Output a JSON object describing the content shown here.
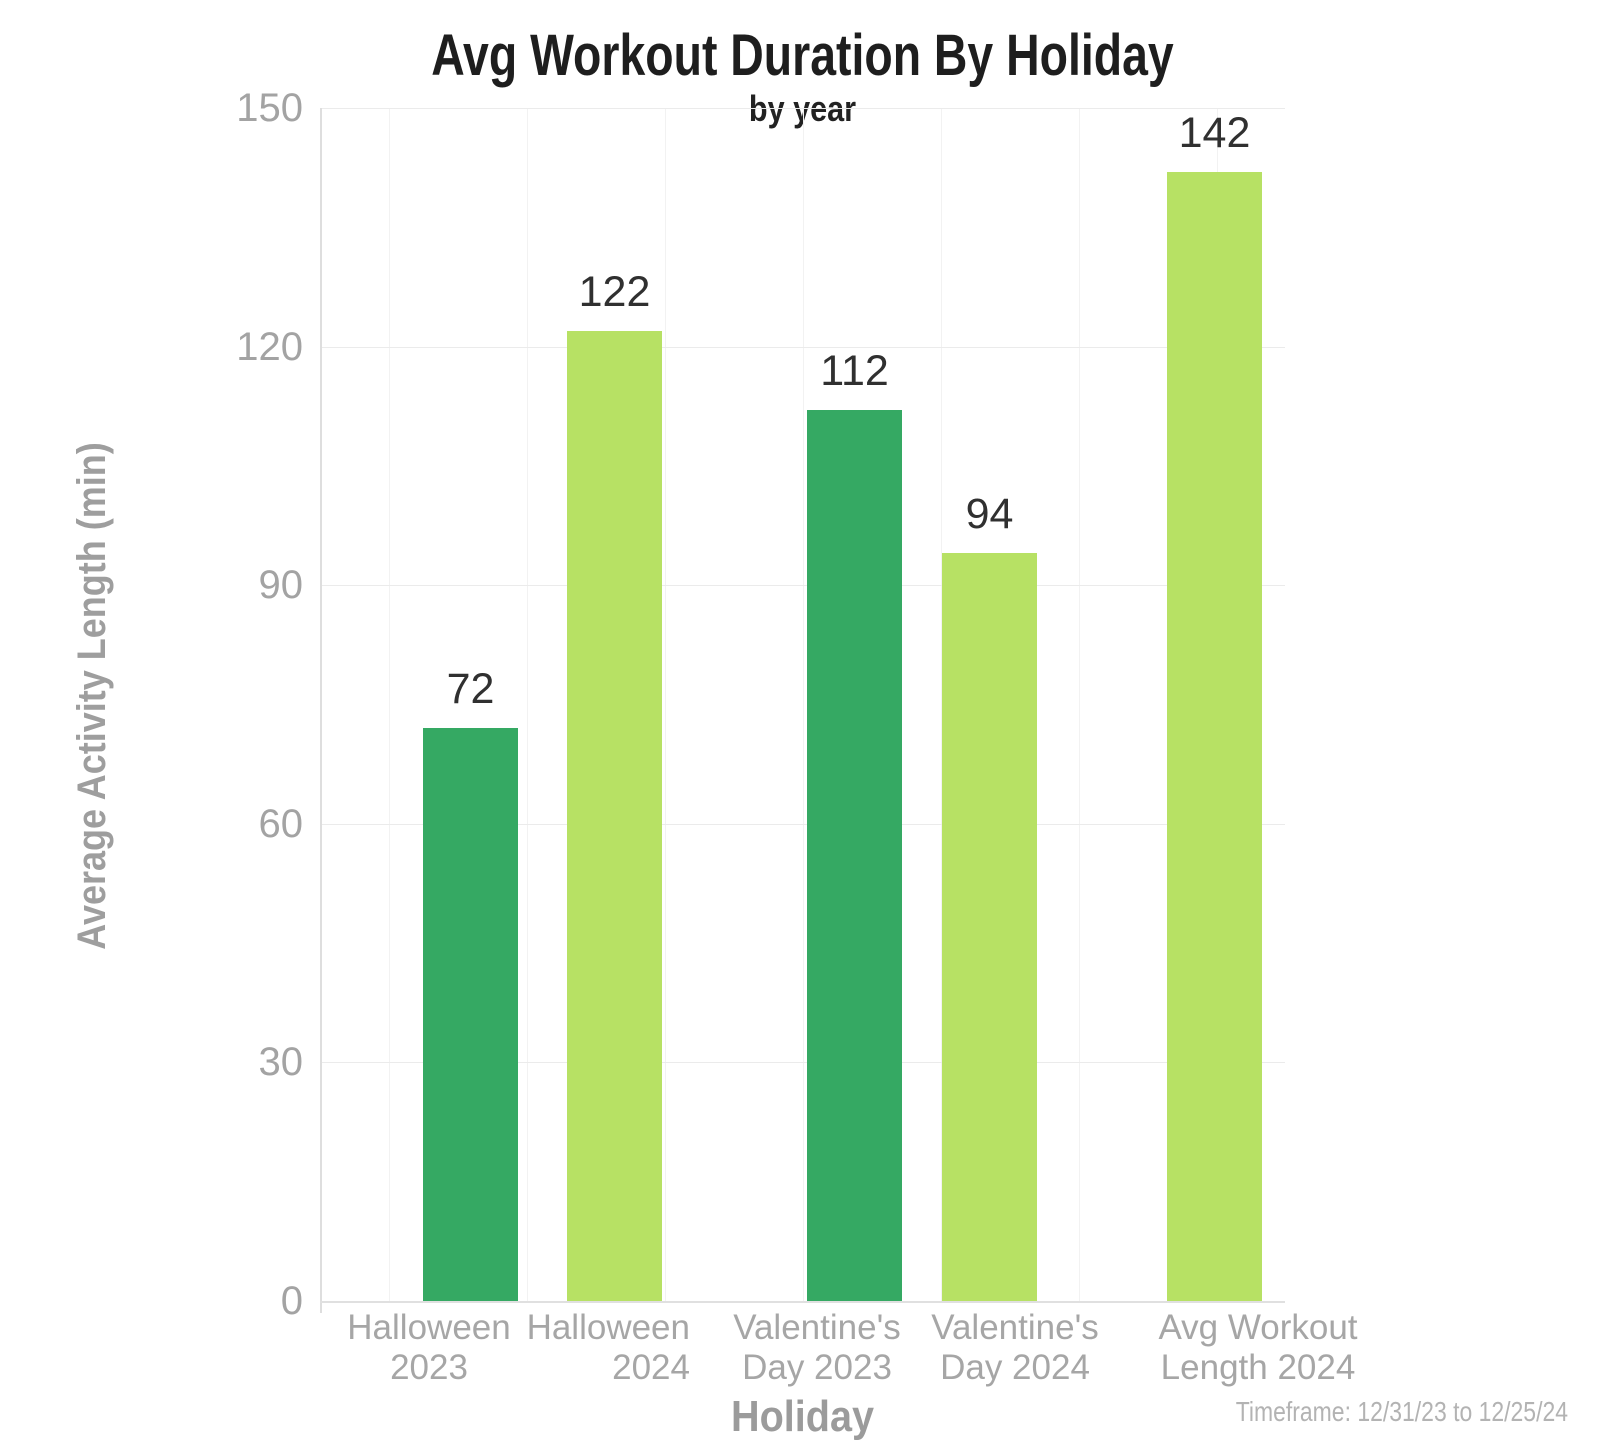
{
  "chart_data": {
    "type": "bar",
    "title": "Avg Workout Duration By Holiday",
    "subtitle": "by year",
    "xlabel": "Holiday",
    "ylabel": "Average Activity Length (min)",
    "categories": [
      "Halloween 2023",
      "Halloween 2024",
      "Valentine's Day 2023",
      "Valentine's Day 2024",
      "Avg Workout Length 2024"
    ],
    "category_label_lines": [
      [
        "Halloween",
        "2023"
      ],
      [
        "Halloween",
        "2024"
      ],
      [
        "Valentine's",
        "Day 2023"
      ],
      [
        "Valentine's",
        "Day 2024"
      ],
      [
        "Avg Workout",
        "Length 2024"
      ]
    ],
    "values": [
      72,
      122,
      112,
      94,
      142
    ],
    "value_labels": [
      "72",
      "122",
      "112",
      "94",
      "142"
    ],
    "bar_color_keys": [
      "dark",
      "light",
      "dark",
      "light",
      "light"
    ],
    "colors": {
      "dark": "#35a963",
      "light": "#b7e164"
    },
    "ylim": [
      0,
      150
    ],
    "yticks": [
      0,
      30,
      60,
      90,
      120,
      150
    ],
    "ytick_labels": [
      "0",
      "30",
      "60",
      "90",
      "120",
      "150"
    ],
    "grid": true,
    "legend": "none",
    "timeframe_note": "Timeframe: 12/31/23 to 12/25/24"
  }
}
